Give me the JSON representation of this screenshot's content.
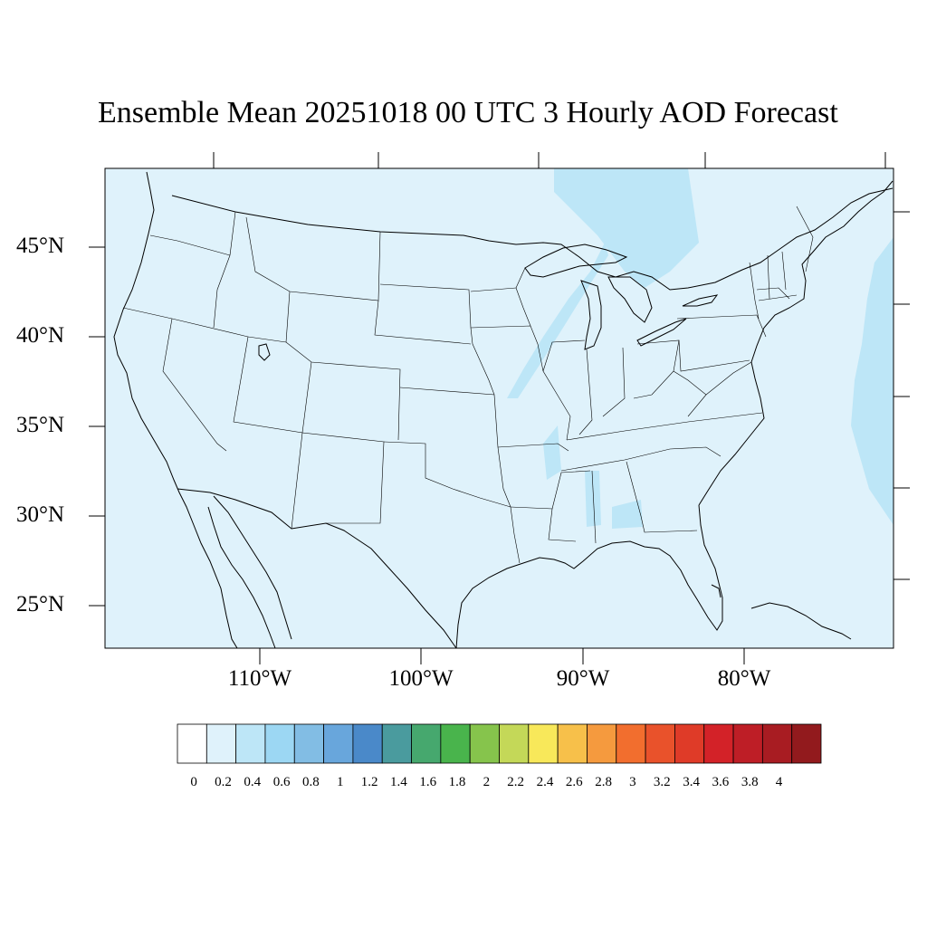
{
  "title": "Ensemble Mean 20251018 00 UTC 3 Hourly AOD Forecast",
  "map": {
    "background_color": "#dff2fb",
    "light_plume_color": "#bde6f7",
    "lat_labels": [
      "45°N",
      "40°N",
      "35°N",
      "30°N",
      "25°N"
    ],
    "lon_labels": [
      "110°W",
      "100°W",
      "90°W",
      "80°W"
    ]
  },
  "colorbar": {
    "colors": [
      "#ffffff",
      "#dff2fb",
      "#bde6f7",
      "#9cd7f3",
      "#82bde4",
      "#68a6dc",
      "#4a89c9",
      "#4a9b9e",
      "#46a86e",
      "#49b44c",
      "#86c44c",
      "#c4d858",
      "#f8e85a",
      "#f7c04a",
      "#f59a3e",
      "#f26e2e",
      "#e9522b",
      "#df3b28",
      "#d32228",
      "#be1e26",
      "#a81c22",
      "#921a1d"
    ],
    "labels": [
      "0",
      "0.2",
      "0.4",
      "0.6",
      "0.8",
      "1",
      "1.2",
      "1.4",
      "1.6",
      "1.8",
      "2",
      "2.2",
      "2.4",
      "2.6",
      "2.8",
      "3",
      "3.2",
      "3.4",
      "3.6",
      "3.8",
      "4"
    ]
  }
}
